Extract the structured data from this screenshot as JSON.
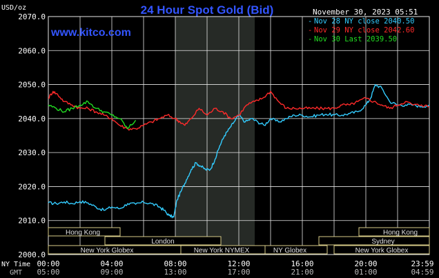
{
  "header": {
    "unit_label": "USD/oz",
    "title": "24 Hour Spot Gold (Bid)",
    "timestamp": "November 30, 2023 05:51",
    "watermark": "www.kitco.com"
  },
  "legend": [
    {
      "text": "Nov 28 NY close 2040.50",
      "color": "#33ccff"
    },
    {
      "text": "Nov 29 NY close 2042.60",
      "color": "#ff2a2a"
    },
    {
      "text": "Nov 30 Last 2039.50",
      "color": "#22dd22"
    }
  ],
  "axis": {
    "y_labels": [
      "2070.0",
      "2060.0",
      "2050.0",
      "2040.0",
      "2030.0",
      "2020.0",
      "2010.0",
      "2000.0"
    ],
    "ny_time_label": "NY Time",
    "gmt_label": "GMT",
    "ny_ticks": [
      "00:00",
      "04:00",
      "08:00",
      "12:00",
      "16:00",
      "20:00",
      "23:59"
    ],
    "gmt_ticks": [
      "05:00",
      "09:00",
      "13:00",
      "17:00",
      "21:00",
      "01:00",
      "04:59"
    ]
  },
  "sessions": {
    "hong_kong_left": "Hong Kong",
    "london": "London",
    "new_york_globex_left": "New York Globex",
    "new_york_nymex": "New York NYMEX",
    "ny_globex_mid": "NY Globex",
    "hong_kong_right": "Hong Kong",
    "sydney": "Sydney",
    "new_york_globex_right": "New York Globex"
  },
  "colors": {
    "background": "#000000",
    "grid": "#e8e8e8",
    "nymex_shade": "#262a26",
    "session_border": "#d8cc88",
    "title": "#3355ff",
    "watermark": "#3355ff",
    "series_nov28": "#33ccff",
    "series_nov29": "#ff2a2a",
    "series_nov30": "#22dd22"
  },
  "chart_data": {
    "type": "line",
    "title": "24 Hour Spot Gold (Bid)",
    "ylabel": "USD/oz",
    "xlabel": "NY Time",
    "x_unit": "hours (NY time)",
    "xlim": [
      0,
      24
    ],
    "ylim": [
      2000,
      2070
    ],
    "grid": true,
    "legend_position": "top-right",
    "shaded_range": [
      8,
      13
    ],
    "series": [
      {
        "name": "Nov 28 NY close 2040.50",
        "color": "#33ccff",
        "x": [
          0,
          0.5,
          1,
          1.5,
          2,
          2.5,
          3,
          3.5,
          4,
          4.5,
          5,
          5.5,
          6,
          6.5,
          7,
          7.3,
          7.6,
          7.9,
          8.1,
          8.4,
          8.7,
          9,
          9.3,
          9.6,
          9.9,
          10.2,
          10.5,
          10.8,
          11.1,
          11.4,
          11.7,
          12,
          12.4,
          12.8,
          13.2,
          13.6,
          14,
          14.5,
          15,
          15.5,
          16,
          16.5,
          17,
          17.5,
          18,
          18.5,
          19,
          19.5,
          20,
          20.3,
          20.6,
          21,
          21.5,
          22,
          22.5,
          23,
          23.5,
          24
        ],
        "values": [
          2015.2,
          2015,
          2015.5,
          2015,
          2015.6,
          2015.2,
          2014,
          2013,
          2014,
          2013.5,
          2015,
          2014.8,
          2015.4,
          2015,
          2014,
          2013,
          2011.5,
          2011,
          2016,
          2019,
          2022,
          2025,
          2027,
          2026,
          2025,
          2025,
          2028,
          2032,
          2035,
          2037,
          2039,
          2041,
          2039,
          2040,
          2039,
          2038,
          2040,
          2039,
          2040,
          2041,
          2041,
          2040.5,
          2041,
          2041.3,
          2041,
          2041,
          2041.5,
          2042,
          2044,
          2046,
          2050,
          2049,
          2045,
          2044,
          2044,
          2044,
          2043.5,
          2044
        ]
      },
      {
        "name": "Nov 29 NY close 2042.60",
        "color": "#ff2a2a",
        "x": [
          0,
          0.3,
          0.6,
          1,
          1.5,
          2,
          2.5,
          3,
          3.5,
          4,
          4.5,
          5,
          5.5,
          6,
          6.5,
          7,
          7.5,
          8,
          8.3,
          8.6,
          9,
          9.5,
          10,
          10.5,
          11,
          11.5,
          12,
          12.5,
          13,
          13.5,
          14,
          14.5,
          15,
          15.5,
          16,
          16.5,
          17,
          17.5,
          18,
          18.5,
          19,
          19.5,
          20,
          20.5,
          21,
          21.5,
          22,
          22.5,
          23,
          23.5,
          24
        ],
        "values": [
          2046,
          2048,
          2047,
          2045,
          2044,
          2043,
          2043,
          2042,
          2041,
          2040,
          2038,
          2037,
          2037,
          2038,
          2039,
          2040,
          2041,
          2040,
          2039,
          2038,
          2040,
          2043,
          2041,
          2043,
          2042,
          2040,
          2041,
          2044,
          2045,
          2046,
          2048,
          2045,
          2043,
          2043,
          2043,
          2043,
          2043,
          2043,
          2043,
          2044,
          2044,
          2045,
          2046,
          2045,
          2044,
          2043,
          2044,
          2045,
          2044,
          2044,
          2043.5
        ]
      },
      {
        "name": "Nov 30 Last 2039.50",
        "color": "#22dd22",
        "x": [
          0,
          0.5,
          1,
          1.5,
          2,
          2.5,
          3,
          3.5,
          4,
          4.5,
          5,
          5.5
        ],
        "values": [
          2044,
          2043,
          2042,
          2043,
          2044,
          2045,
          2043,
          2042,
          2041,
          2040,
          2037,
          2039.5
        ]
      }
    ]
  }
}
